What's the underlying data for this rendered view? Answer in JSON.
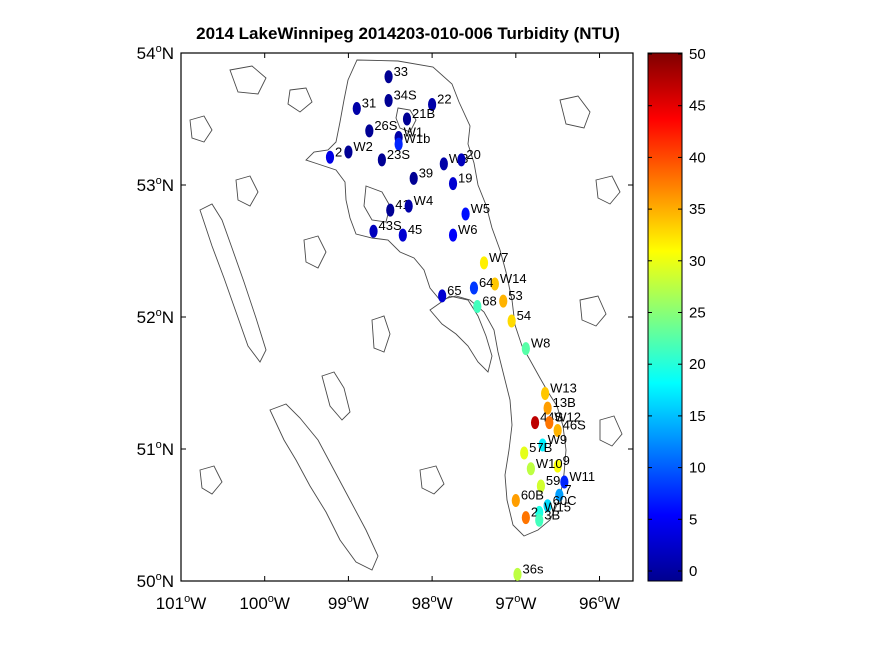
{
  "chart_data": {
    "type": "scatter",
    "title": "2014 LakeWinnipeg 2014203-010-006 Turbidity (NTU)",
    "x_ticks": [
      {
        "value": -101,
        "deg": "101",
        "hemi": "W"
      },
      {
        "value": -100,
        "deg": "100",
        "hemi": "W"
      },
      {
        "value": -99,
        "deg": "99",
        "hemi": "W"
      },
      {
        "value": -98,
        "deg": "98",
        "hemi": "W"
      },
      {
        "value": -97,
        "deg": "97",
        "hemi": "W"
      },
      {
        "value": -96,
        "deg": "96",
        "hemi": "W"
      }
    ],
    "y_ticks": [
      {
        "value": 54,
        "deg": "54",
        "hemi": "N"
      },
      {
        "value": 53,
        "deg": "53",
        "hemi": "N"
      },
      {
        "value": 52,
        "deg": "52",
        "hemi": "N"
      },
      {
        "value": 51,
        "deg": "51",
        "hemi": "N"
      },
      {
        "value": 50,
        "deg": "50",
        "hemi": "N"
      }
    ],
    "xlim": [
      -101,
      -95.6
    ],
    "ylim": [
      50,
      54
    ],
    "colorbar": {
      "colormap": "jet",
      "range": [
        0,
        50
      ],
      "ticks": [
        "0",
        "5",
        "10",
        "15",
        "20",
        "25",
        "30",
        "35",
        "40",
        "45",
        "50"
      ]
    },
    "stations": [
      {
        "label": "33",
        "lon": -98.52,
        "lat": 53.82,
        "value": 1
      },
      {
        "label": "31",
        "lon": -98.9,
        "lat": 53.58,
        "value": 2
      },
      {
        "label": "34S",
        "lon": -98.52,
        "lat": 53.64,
        "value": 1
      },
      {
        "label": "22",
        "lon": -98.0,
        "lat": 53.61,
        "value": 2
      },
      {
        "label": "21B",
        "lon": -98.3,
        "lat": 53.5,
        "value": 1
      },
      {
        "label": "26S",
        "lon": -98.75,
        "lat": 53.41,
        "value": 1
      },
      {
        "label": "W1",
        "lon": -98.4,
        "lat": 53.36,
        "value": 2
      },
      {
        "label": "W1b",
        "lon": -98.4,
        "lat": 53.31,
        "value": 8
      },
      {
        "label": "2",
        "lon": -99.22,
        "lat": 53.21,
        "value": 5
      },
      {
        "label": "W2",
        "lon": -99.0,
        "lat": 53.25,
        "value": 1
      },
      {
        "label": "23S",
        "lon": -98.6,
        "lat": 53.19,
        "value": 1
      },
      {
        "label": "W3",
        "lon": -97.86,
        "lat": 53.16,
        "value": 2
      },
      {
        "label": "20",
        "lon": -97.65,
        "lat": 53.19,
        "value": 3
      },
      {
        "label": "39",
        "lon": -98.22,
        "lat": 53.05,
        "value": 1
      },
      {
        "label": "19",
        "lon": -97.75,
        "lat": 53.01,
        "value": 4
      },
      {
        "label": "41",
        "lon": -98.5,
        "lat": 52.81,
        "value": 1
      },
      {
        "label": "W4",
        "lon": -98.28,
        "lat": 52.84,
        "value": 2
      },
      {
        "label": "W5",
        "lon": -97.6,
        "lat": 52.78,
        "value": 7
      },
      {
        "label": "43S",
        "lon": -98.7,
        "lat": 52.65,
        "value": 3
      },
      {
        "label": "45",
        "lon": -98.35,
        "lat": 52.62,
        "value": 4
      },
      {
        "label": "W6",
        "lon": -97.75,
        "lat": 52.62,
        "value": 6
      },
      {
        "label": "W7",
        "lon": -97.38,
        "lat": 52.41,
        "value": 32
      },
      {
        "label": "W14",
        "lon": -97.25,
        "lat": 52.25,
        "value": 34
      },
      {
        "label": "64",
        "lon": -97.5,
        "lat": 52.22,
        "value": 9
      },
      {
        "label": "65",
        "lon": -97.88,
        "lat": 52.16,
        "value": 4
      },
      {
        "label": "53",
        "lon": -97.15,
        "lat": 52.12,
        "value": 35
      },
      {
        "label": "68",
        "lon": -97.46,
        "lat": 52.08,
        "value": 22
      },
      {
        "label": "54",
        "lon": -97.05,
        "lat": 51.97,
        "value": 33
      },
      {
        "label": "W8",
        "lon": -96.88,
        "lat": 51.76,
        "value": 23
      },
      {
        "label": "W13",
        "lon": -96.65,
        "lat": 51.42,
        "value": 34
      },
      {
        "label": "13B",
        "lon": -96.62,
        "lat": 51.31,
        "value": 36
      },
      {
        "label": "44S",
        "lon": -96.77,
        "lat": 51.2,
        "value": 47
      },
      {
        "label": "W12",
        "lon": -96.6,
        "lat": 51.2,
        "value": 38
      },
      {
        "label": "46S",
        "lon": -96.5,
        "lat": 51.14,
        "value": 35
      },
      {
        "label": "W9",
        "lon": -96.68,
        "lat": 51.03,
        "value": 18
      },
      {
        "label": "57B",
        "lon": -96.9,
        "lat": 50.97,
        "value": 30
      },
      {
        "label": "9",
        "lon": -96.5,
        "lat": 50.87,
        "value": 31
      },
      {
        "label": "W10",
        "lon": -96.82,
        "lat": 50.85,
        "value": 28
      },
      {
        "label": "W11",
        "lon": -96.42,
        "lat": 50.75,
        "value": 8
      },
      {
        "label": "59",
        "lon": -96.7,
        "lat": 50.72,
        "value": 29
      },
      {
        "label": "7",
        "lon": -96.48,
        "lat": 50.65,
        "value": 14
      },
      {
        "label": "60B",
        "lon": -97.0,
        "lat": 50.61,
        "value": 36
      },
      {
        "label": "60C",
        "lon": -96.62,
        "lat": 50.57,
        "value": 17
      },
      {
        "label": "W15",
        "lon": -96.72,
        "lat": 50.52,
        "value": 20
      },
      {
        "label": "2",
        "lon": -96.88,
        "lat": 50.48,
        "value": 38
      },
      {
        "label": "3B",
        "lon": -96.72,
        "lat": 50.46,
        "value": 22
      },
      {
        "label": "36s",
        "lon": -96.98,
        "lat": 50.05,
        "value": 28
      }
    ]
  }
}
